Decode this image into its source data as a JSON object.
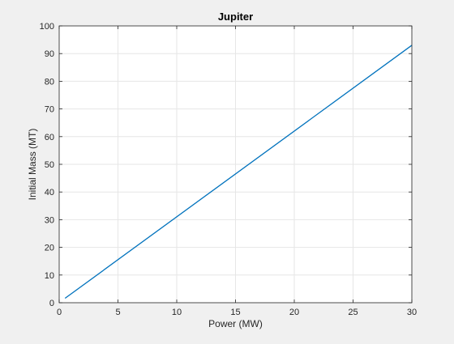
{
  "chart_data": {
    "type": "line",
    "title": "Jupiter",
    "xlabel": "Power (MW)",
    "ylabel": "Initial Mass (MT)",
    "xlim": [
      0,
      30
    ],
    "ylim": [
      0,
      100
    ],
    "xticks": [
      0,
      5,
      10,
      15,
      20,
      25,
      30
    ],
    "yticks": [
      0,
      10,
      20,
      30,
      40,
      50,
      60,
      70,
      80,
      90,
      100
    ],
    "grid": true,
    "series": [
      {
        "x": [
          0.5,
          30
        ],
        "y": [
          1.6,
          93.0
        ]
      }
    ]
  },
  "colors": {
    "figure_background": "#f0f0f0",
    "axes_background": "#ffffff",
    "line": "#0072bd",
    "grid": "#e6e6e6",
    "axis": "#262626"
  }
}
